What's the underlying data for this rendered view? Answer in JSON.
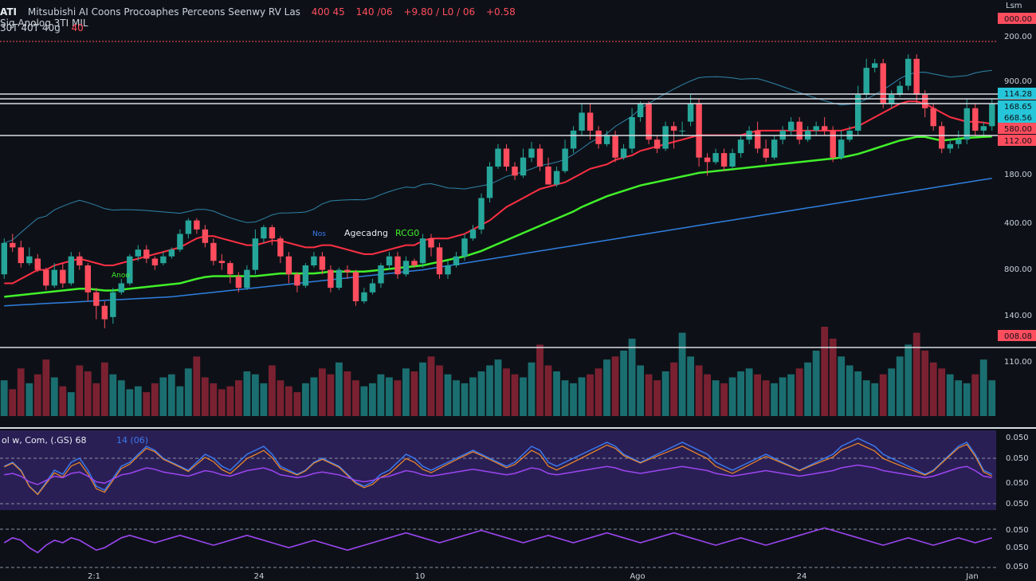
{
  "header": {
    "ticker": "ATI",
    "title_line": "Mitsubishi AI Coons Procoaphes Perceons Seenwy RV Las",
    "values": [
      {
        "text": "400 45",
        "color": "#ff4d5e"
      },
      {
        "text": "140 /06",
        "color": "#ff4d5e"
      },
      {
        "text": "+9.80 / L0 / 06",
        "color": "#ff4d5e"
      },
      {
        "text": "+0.58",
        "color": "#ff4d5e"
      }
    ],
    "line2": "Sig Anolog 3TI MIL",
    "line3": "30T 40T 40g",
    "line3_value": "40",
    "corner_label": "Lsm"
  },
  "overlay_labels": {
    "indicator_label": "Agecadng",
    "indicator_value": "RCG0",
    "small_label": "Nos",
    "small_label_2": "Anoo",
    "osc_label": "ol w, Com, (.GS) 68",
    "osc_value": "14 (06)"
  },
  "price_labels": [
    {
      "text": "000.00",
      "fill": "#ff4d5e"
    },
    {
      "text": "200.00",
      "fill": ""
    },
    {
      "text": "900.00",
      "fill": ""
    },
    {
      "text": "114.28",
      "fill": "#26c6da"
    },
    {
      "text": "168.65",
      "fill": "#26c6da"
    },
    {
      "text": "668.56",
      "fill": "#26c6da"
    },
    {
      "text": "580.00",
      "fill": "#ff4d5e"
    },
    {
      "text": "112.00",
      "fill": "#ff4d5e"
    },
    {
      "text": "180.00",
      "fill": ""
    },
    {
      "text": "400.00",
      "fill": ""
    },
    {
      "text": "800.00",
      "fill": ""
    },
    {
      "text": "140.00",
      "fill": ""
    },
    {
      "text": "008.08",
      "fill": "#ff4d5e"
    },
    {
      "text": "110.00",
      "fill": ""
    }
  ],
  "osc_labels": [
    "0.050",
    "0.050",
    "0.050",
    "0.050"
  ],
  "osc2_labels": [
    "0.050",
    "0.050",
    "0.050"
  ],
  "x_labels": [
    "2:1",
    "24",
    "10",
    "Ago",
    "24",
    "Jan"
  ],
  "chart_data": {
    "type": "candlestick",
    "y_range": [
      0,
      1000
    ],
    "grid": false,
    "colors": {
      "up": "#26a69a",
      "down": "#ff4d5e",
      "ma_red": "#ff2f44",
      "ma_green": "#41f02a",
      "ma_blue": "#2f7fe0",
      "band": "#3aa0d0",
      "volume_up": "#1f7f80",
      "volume_down": "#8e2436",
      "osc_fill": "#2a1f55",
      "osc_line_purple": "#9b45f0",
      "osc_line_orange": "#f08a2a",
      "osc_line_blue": "#3a7af0"
    },
    "candles": [
      [
        320,
        390,
        310,
        400
      ],
      [
        390,
        380,
        370,
        410
      ],
      [
        380,
        345,
        335,
        395
      ],
      [
        345,
        360,
        340,
        380
      ],
      [
        355,
        330,
        325,
        365
      ],
      [
        330,
        295,
        285,
        335
      ],
      [
        295,
        330,
        290,
        345
      ],
      [
        330,
        300,
        290,
        345
      ],
      [
        300,
        360,
        295,
        370
      ],
      [
        360,
        340,
        330,
        370
      ],
      [
        340,
        280,
        260,
        345
      ],
      [
        280,
        250,
        220,
        290
      ],
      [
        250,
        220,
        200,
        260
      ],
      [
        225,
        280,
        210,
        290
      ],
      [
        280,
        300,
        275,
        310
      ],
      [
        300,
        360,
        295,
        365
      ],
      [
        360,
        375,
        350,
        385
      ],
      [
        375,
        355,
        345,
        385
      ],
      [
        355,
        340,
        330,
        360
      ],
      [
        345,
        360,
        340,
        370
      ],
      [
        360,
        375,
        355,
        380
      ],
      [
        375,
        410,
        370,
        420
      ],
      [
        410,
        440,
        400,
        445
      ],
      [
        440,
        420,
        410,
        445
      ],
      [
        420,
        390,
        380,
        430
      ],
      [
        390,
        350,
        340,
        400
      ],
      [
        350,
        345,
        330,
        365
      ],
      [
        345,
        320,
        300,
        350
      ],
      [
        315,
        290,
        280,
        325
      ],
      [
        290,
        330,
        285,
        340
      ],
      [
        330,
        400,
        320,
        420
      ],
      [
        400,
        425,
        390,
        430
      ],
      [
        425,
        400,
        385,
        430
      ],
      [
        400,
        360,
        345,
        405
      ],
      [
        360,
        320,
        300,
        370
      ],
      [
        320,
        295,
        280,
        325
      ],
      [
        295,
        340,
        290,
        345
      ],
      [
        340,
        360,
        335,
        370
      ],
      [
        360,
        330,
        320,
        370
      ],
      [
        330,
        290,
        280,
        340
      ],
      [
        290,
        330,
        285,
        335
      ],
      [
        330,
        325,
        310,
        340
      ],
      [
        325,
        260,
        250,
        330
      ],
      [
        260,
        280,
        255,
        290
      ],
      [
        280,
        300,
        275,
        310
      ],
      [
        300,
        340,
        290,
        345
      ],
      [
        340,
        360,
        330,
        370
      ],
      [
        360,
        320,
        310,
        370
      ],
      [
        320,
        350,
        315,
        360
      ],
      [
        350,
        340,
        335,
        355
      ],
      [
        345,
        400,
        335,
        410
      ],
      [
        400,
        380,
        360,
        410
      ],
      [
        380,
        320,
        310,
        390
      ],
      [
        320,
        340,
        310,
        350
      ],
      [
        340,
        360,
        335,
        370
      ],
      [
        360,
        400,
        350,
        410
      ],
      [
        400,
        420,
        395,
        430
      ],
      [
        420,
        490,
        410,
        500
      ],
      [
        490,
        560,
        480,
        570
      ],
      [
        560,
        600,
        555,
        610
      ],
      [
        600,
        560,
        550,
        610
      ],
      [
        560,
        540,
        530,
        570
      ],
      [
        540,
        580,
        535,
        600
      ],
      [
        580,
        600,
        570,
        615
      ],
      [
        600,
        560,
        550,
        610
      ],
      [
        560,
        520,
        520,
        580
      ],
      [
        520,
        550,
        515,
        560
      ],
      [
        550,
        600,
        545,
        620
      ],
      [
        600,
        640,
        590,
        650
      ],
      [
        640,
        680,
        630,
        700
      ],
      [
        680,
        640,
        620,
        700
      ],
      [
        640,
        610,
        600,
        650
      ],
      [
        610,
        630,
        605,
        640
      ],
      [
        630,
        580,
        570,
        640
      ],
      [
        580,
        600,
        575,
        610
      ],
      [
        600,
        670,
        590,
        690
      ],
      [
        670,
        700,
        660,
        705
      ],
      [
        700,
        620,
        610,
        705
      ],
      [
        620,
        600,
        590,
        630
      ],
      [
        600,
        650,
        595,
        660
      ],
      [
        650,
        640,
        600,
        660
      ],
      [
        640,
        640,
        630,
        660
      ],
      [
        660,
        700,
        650,
        720
      ],
      [
        700,
        580,
        560,
        710
      ],
      [
        580,
        570,
        540,
        590
      ],
      [
        570,
        590,
        565,
        600
      ],
      [
        590,
        560,
        550,
        600
      ],
      [
        560,
        590,
        555,
        600
      ],
      [
        590,
        620,
        580,
        630
      ],
      [
        620,
        640,
        610,
        650
      ],
      [
        640,
        600,
        590,
        660
      ],
      [
        600,
        580,
        570,
        620
      ],
      [
        580,
        620,
        575,
        630
      ],
      [
        620,
        640,
        610,
        650
      ],
      [
        640,
        660,
        630,
        670
      ],
      [
        660,
        620,
        610,
        670
      ],
      [
        620,
        640,
        615,
        650
      ],
      [
        640,
        650,
        630,
        660
      ],
      [
        650,
        640,
        630,
        670
      ],
      [
        640,
        580,
        570,
        650
      ],
      [
        580,
        620,
        575,
        640
      ],
      [
        620,
        640,
        615,
        650
      ],
      [
        640,
        720,
        630,
        740
      ],
      [
        720,
        780,
        710,
        800
      ],
      [
        780,
        790,
        770,
        800
      ],
      [
        790,
        700,
        690,
        800
      ],
      [
        700,
        720,
        690,
        730
      ],
      [
        720,
        740,
        715,
        750
      ],
      [
        740,
        800,
        730,
        810
      ],
      [
        800,
        720,
        700,
        810
      ],
      [
        720,
        690,
        670,
        730
      ],
      [
        690,
        650,
        640,
        700
      ],
      [
        650,
        600,
        590,
        660
      ],
      [
        600,
        610,
        590,
        620
      ],
      [
        610,
        620,
        600,
        640
      ],
      [
        620,
        690,
        610,
        710
      ],
      [
        690,
        640,
        630,
        700
      ],
      [
        640,
        650,
        630,
        660
      ],
      [
        650,
        700,
        640,
        710
      ]
    ],
    "series": [
      {
        "name": "MA1",
        "values": [
          300,
          300,
          310,
          320,
          330,
          330,
          340,
          345,
          350,
          355,
          350,
          345,
          340,
          340,
          345,
          350,
          355,
          360,
          365,
          370,
          375,
          380,
          390,
          400,
          405,
          405,
          400,
          395,
          390,
          385,
          385,
          390,
          395,
          395,
          390,
          385,
          380,
          380,
          385,
          385,
          380,
          375,
          370,
          365,
          365,
          370,
          375,
          380,
          385,
          385,
          395,
          400,
          400,
          400,
          405,
          410,
          420,
          430,
          440,
          455,
          470,
          480,
          490,
          500,
          510,
          515,
          520,
          525,
          535,
          545,
          555,
          560,
          565,
          575,
          580,
          585,
          595,
          600,
          605,
          610,
          615,
          620,
          625,
          630,
          630,
          630,
          630,
          630,
          630,
          635,
          640,
          640,
          640,
          640,
          640,
          640,
          640,
          640,
          640,
          640,
          640,
          645,
          650,
          660,
          670,
          680,
          690,
          700,
          705,
          705,
          700,
          690,
          680,
          670,
          665,
          660,
          660,
          658,
          655
        ]
      },
      {
        "name": "MA2",
        "values": [
          270,
          272,
          274,
          276,
          278,
          280,
          282,
          284,
          286,
          288,
          288,
          286,
          284,
          284,
          286,
          288,
          290,
          292,
          294,
          296,
          298,
          300,
          305,
          310,
          314,
          316,
          316,
          316,
          316,
          316,
          316,
          318,
          320,
          322,
          322,
          322,
          322,
          322,
          324,
          326,
          326,
          326,
          326,
          326,
          328,
          330,
          332,
          334,
          336,
          338,
          340,
          344,
          348,
          352,
          356,
          360,
          366,
          372,
          380,
          388,
          396,
          404,
          412,
          420,
          428,
          436,
          444,
          452,
          460,
          470,
          478,
          486,
          494,
          500,
          506,
          512,
          518,
          522,
          526,
          530,
          534,
          538,
          542,
          546,
          548,
          550,
          552,
          554,
          556,
          558,
          560,
          562,
          564,
          566,
          568,
          570,
          572,
          574,
          576,
          578,
          580,
          584,
          588,
          594,
          600,
          606,
          612,
          618,
          622,
          626,
          626,
          622,
          618,
          620,
          622,
          624,
          625,
          626,
          627
        ]
      },
      {
        "name": "MA3",
        "values": [
          250,
          251,
          252,
          253,
          254,
          255,
          256,
          257,
          258,
          259,
          260,
          261,
          262,
          263,
          264,
          265,
          266,
          267,
          268,
          269,
          270,
          272,
          274,
          276,
          278,
          280,
          282,
          284,
          286,
          288,
          290,
          292,
          294,
          296,
          298,
          300,
          302,
          304,
          306,
          308,
          310,
          312,
          314,
          316,
          318,
          320,
          322,
          324,
          326,
          328,
          330,
          333,
          336,
          339,
          342,
          345,
          348,
          351,
          354,
          357,
          360,
          363,
          366,
          369,
          372,
          375,
          378,
          381,
          384,
          387,
          390,
          393,
          396,
          399,
          402,
          405,
          408,
          411,
          414,
          417,
          420,
          423,
          426,
          429,
          432,
          435,
          438,
          441,
          444,
          447,
          450,
          453,
          456,
          459,
          462,
          465,
          468,
          471,
          474,
          477,
          480,
          483,
          486,
          489,
          492,
          495,
          498,
          501,
          504,
          507,
          510,
          513,
          516,
          519,
          522,
          525,
          528,
          531,
          534
        ]
      }
    ],
    "volume": [
      60,
      45,
      80,
      55,
      70,
      95,
      65,
      50,
      40,
      85,
      75,
      55,
      90,
      70,
      60,
      45,
      50,
      40,
      55,
      65,
      70,
      50,
      80,
      100,
      65,
      55,
      45,
      50,
      60,
      75,
      70,
      55,
      85,
      60,
      50,
      40,
      55,
      65,
      80,
      70,
      90,
      75,
      60,
      50,
      55,
      70,
      65,
      60,
      80,
      75,
      90,
      100,
      85,
      70,
      60,
      55,
      65,
      75,
      85,
      95,
      80,
      70,
      65,
      90,
      120,
      85,
      75,
      60,
      55,
      65,
      70,
      80,
      95,
      100,
      110,
      130,
      85,
      70,
      60,
      75,
      90,
      140,
      100,
      85,
      70,
      60,
      55,
      65,
      75,
      80,
      70,
      60,
      55,
      65,
      70,
      80,
      90,
      110,
      150,
      130,
      100,
      85,
      75,
      60,
      55,
      70,
      80,
      100,
      120,
      140,
      110,
      90,
      80,
      70,
      60,
      55,
      70,
      95,
      60
    ],
    "osc1": [
      0.55,
      0.6,
      0.5,
      0.3,
      0.2,
      0.35,
      0.5,
      0.45,
      0.6,
      0.65,
      0.5,
      0.3,
      0.25,
      0.4,
      0.55,
      0.6,
      0.7,
      0.8,
      0.75,
      0.65,
      0.6,
      0.55,
      0.5,
      0.6,
      0.7,
      0.65,
      0.55,
      0.5,
      0.6,
      0.7,
      0.75,
      0.8,
      0.7,
      0.55,
      0.5,
      0.45,
      0.5,
      0.6,
      0.65,
      0.6,
      0.55,
      0.45,
      0.35,
      0.3,
      0.35,
      0.45,
      0.5,
      0.6,
      0.7,
      0.65,
      0.55,
      0.5,
      0.55,
      0.6,
      0.65,
      0.7,
      0.75,
      0.7,
      0.65,
      0.6,
      0.55,
      0.6,
      0.7,
      0.8,
      0.75,
      0.6,
      0.55,
      0.6,
      0.65,
      0.7,
      0.75,
      0.8,
      0.85,
      0.8,
      0.7,
      0.65,
      0.6,
      0.65,
      0.7,
      0.75,
      0.8,
      0.85,
      0.8,
      0.75,
      0.7,
      0.6,
      0.55,
      0.5,
      0.55,
      0.6,
      0.65,
      0.7,
      0.65,
      0.6,
      0.55,
      0.5,
      0.55,
      0.6,
      0.65,
      0.7,
      0.8,
      0.85,
      0.9,
      0.85,
      0.8,
      0.7,
      0.65,
      0.6,
      0.55,
      0.5,
      0.45,
      0.5,
      0.6,
      0.7,
      0.8,
      0.85,
      0.7,
      0.5,
      0.45
    ],
    "osc2": [
      0.5,
      0.6,
      0.55,
      0.4,
      0.3,
      0.45,
      0.55,
      0.5,
      0.6,
      0.55,
      0.45,
      0.35,
      0.4,
      0.5,
      0.6,
      0.65,
      0.6,
      0.55,
      0.5,
      0.55,
      0.6,
      0.65,
      0.6,
      0.55,
      0.5,
      0.45,
      0.5,
      0.55,
      0.6,
      0.65,
      0.6,
      0.55,
      0.5,
      0.45,
      0.4,
      0.45,
      0.5,
      0.55,
      0.5,
      0.45,
      0.4,
      0.35,
      0.4,
      0.45,
      0.5,
      0.55,
      0.6,
      0.65,
      0.7,
      0.65,
      0.6,
      0.55,
      0.5,
      0.55,
      0.6,
      0.65,
      0.7,
      0.75,
      0.7,
      0.65,
      0.6,
      0.55,
      0.5,
      0.55,
      0.6,
      0.65,
      0.6,
      0.55,
      0.5,
      0.55,
      0.6,
      0.65,
      0.7,
      0.65,
      0.6,
      0.55,
      0.5,
      0.55,
      0.6,
      0.65,
      0.7,
      0.65,
      0.6,
      0.55,
      0.5,
      0.45,
      0.5,
      0.55,
      0.6,
      0.55,
      0.5,
      0.45,
      0.5,
      0.55,
      0.6,
      0.65,
      0.7,
      0.75,
      0.8,
      0.75,
      0.7,
      0.65,
      0.6,
      0.55,
      0.5,
      0.45,
      0.5,
      0.55,
      0.6,
      0.55,
      0.5,
      0.45,
      0.5,
      0.55,
      0.6,
      0.55,
      0.5,
      0.55,
      0.6
    ]
  }
}
